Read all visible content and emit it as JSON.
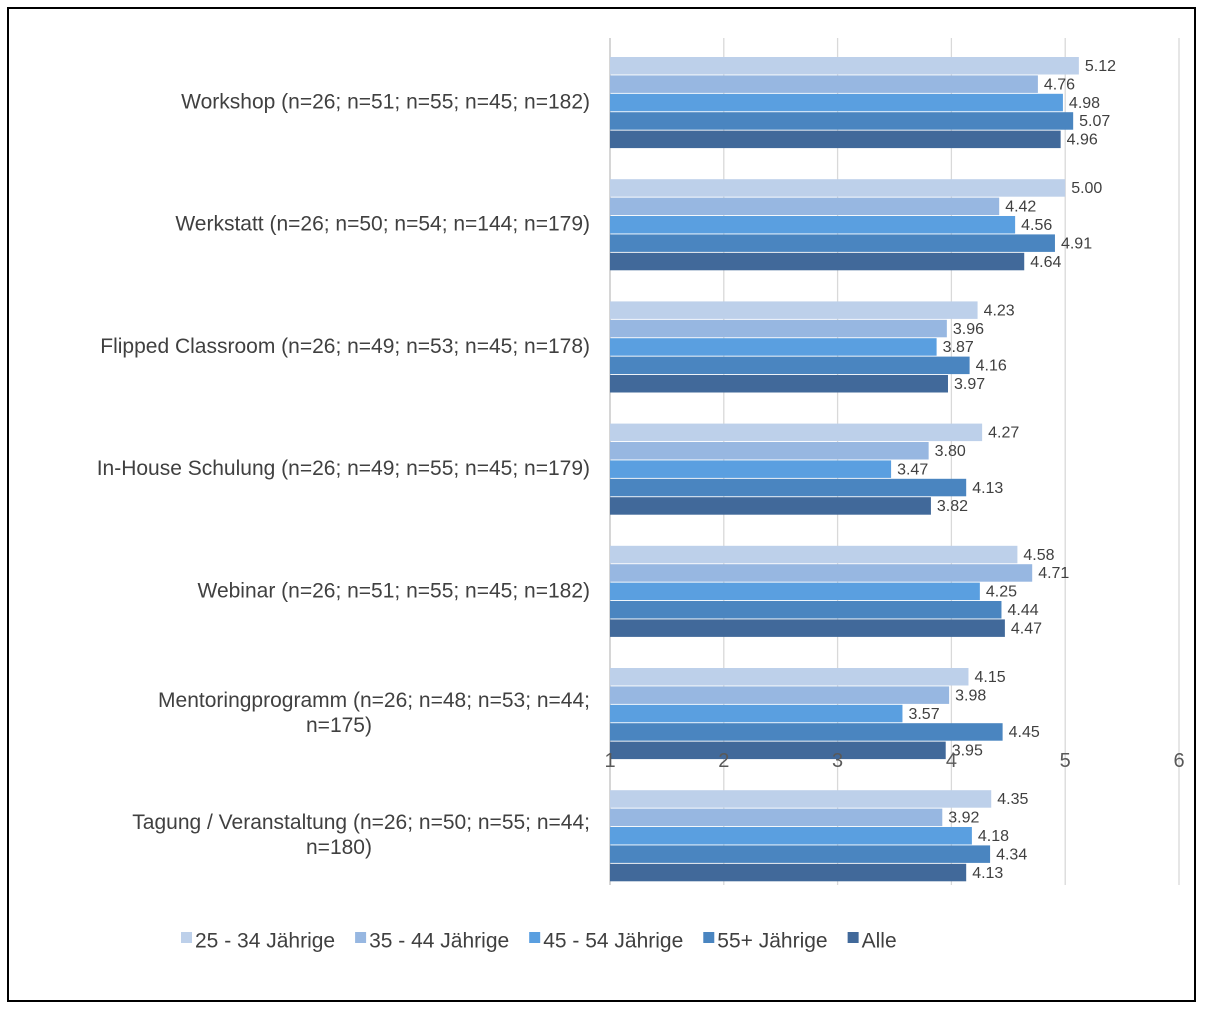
{
  "chart_data": {
    "type": "bar",
    "orientation": "horizontal",
    "categories": [
      [
        "Workshop (n=26; n=51; n=55; n=45; n=182)"
      ],
      [
        "Werkstatt (n=26; n=50; n=54; n=144; n=179)"
      ],
      [
        "Flipped Classroom  (n=26; n=49; n=53; n=45; n=178)"
      ],
      [
        "In-House Schulung (n=26; n=49; n=55; n=45; n=179)"
      ],
      [
        "Webinar (n=26; n=51; n=55; n=45; n=182)"
      ],
      [
        "Mentoringprogramm (n=26; n=48; n=53; n=44;",
        "n=175)"
      ],
      [
        "Tagung / Veranstaltung  (n=26; n=50; n=55; n=44;",
        "n=180)"
      ]
    ],
    "series": [
      {
        "name": "25 - 34 Jährige",
        "color": "#BDD0EA",
        "values": [
          5.12,
          5.0,
          4.23,
          4.27,
          4.58,
          4.15,
          4.35
        ],
        "labels": [
          "5.12",
          "5.00",
          "4.23",
          "4.27",
          "4.58",
          "4.15",
          "4.35"
        ]
      },
      {
        "name": "35 - 44 Jährige",
        "color": "#97B7E1",
        "values": [
          4.76,
          4.42,
          3.96,
          3.8,
          4.71,
          3.98,
          3.92
        ],
        "labels": [
          "4.76",
          "4.42",
          "3.96",
          "3.80",
          "4.71",
          "3.98",
          "3.92"
        ]
      },
      {
        "name": "45 - 54 Jährige",
        "color": "#5A9FE0",
        "values": [
          4.98,
          4.56,
          3.87,
          3.47,
          4.25,
          3.57,
          4.18
        ],
        "labels": [
          "4.98",
          "4.56",
          "3.87",
          "3.47",
          "4.25",
          "3.57",
          "4.18"
        ]
      },
      {
        "name": "55+ Jährige",
        "color": "#4A85C0",
        "values": [
          5.07,
          4.91,
          4.16,
          4.13,
          4.44,
          4.45,
          4.34
        ],
        "labels": [
          "5.07",
          "4.91",
          "4.16",
          "4.13",
          "4.44",
          "4.45",
          "4.34"
        ]
      },
      {
        "name": "Alle",
        "color": "#41699A",
        "values": [
          4.96,
          4.64,
          3.97,
          3.82,
          4.47,
          3.95,
          4.13
        ],
        "labels": [
          "4.96",
          "4.64",
          "3.97",
          "3.82",
          "4.47",
          "3.95",
          "4.13"
        ]
      }
    ],
    "xlim": [
      1,
      6
    ],
    "xticks": [
      "1",
      "2",
      "3",
      "4",
      "5",
      "6"
    ],
    "grid": "vertical",
    "legend_position": "bottom"
  }
}
